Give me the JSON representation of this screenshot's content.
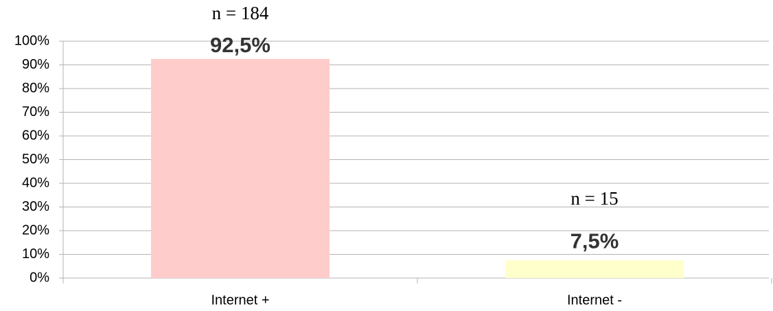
{
  "chart_data": {
    "type": "bar",
    "categories": [
      "Internet +",
      "Internet -"
    ],
    "values": [
      92.5,
      7.5
    ],
    "value_labels": [
      "92,5%",
      "7,5%"
    ],
    "annotations": [
      "n = 184",
      "n = 15"
    ],
    "colors": [
      "#ffcccc",
      "#ffffcc"
    ],
    "ylim": [
      0,
      100
    ],
    "yticks": [
      {
        "value": 0,
        "label": "0%"
      },
      {
        "value": 10,
        "label": "10%"
      },
      {
        "value": 20,
        "label": "20%"
      },
      {
        "value": 30,
        "label": "30%"
      },
      {
        "value": 40,
        "label": "40%"
      },
      {
        "value": 50,
        "label": "50%"
      },
      {
        "value": 60,
        "label": "60%"
      },
      {
        "value": 70,
        "label": "70%"
      },
      {
        "value": 80,
        "label": "80%"
      },
      {
        "value": 90,
        "label": "90%"
      },
      {
        "value": 100,
        "label": "100%"
      }
    ],
    "grid": true
  }
}
